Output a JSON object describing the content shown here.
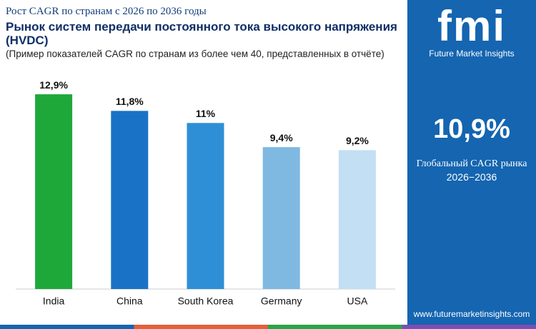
{
  "chart_data": {
    "type": "bar",
    "supertitle": "Рост CAGR по странам с 2026 по 2036 годы",
    "title": "Рынок систем передачи постоянного тока высокого напряжения (HVDC)",
    "subtitle": "(Пример показателей CAGR по странам из более чем 40, представленных в отчёте)",
    "categories": [
      "India",
      "China",
      "South Korea",
      "Germany",
      "USA"
    ],
    "values": [
      12.9,
      11.8,
      11,
      9.4,
      9.2
    ],
    "value_labels": [
      "12,9%",
      "11,8%",
      "11%",
      "9,4%",
      "9,2%"
    ],
    "colors": [
      "#1fa83a",
      "#1a72c6",
      "#2f8fd6",
      "#7fb9e2",
      "#c3dff3"
    ],
    "ylim": [
      0,
      13
    ]
  },
  "sidebar": {
    "brand": "fmi",
    "brand_name": "Future Market Insights",
    "headline_value": "10,9%",
    "headline_label": "Глобальный CAGR рынка",
    "period": "2026−2036",
    "website": "www.futuremarketinsights.com"
  }
}
